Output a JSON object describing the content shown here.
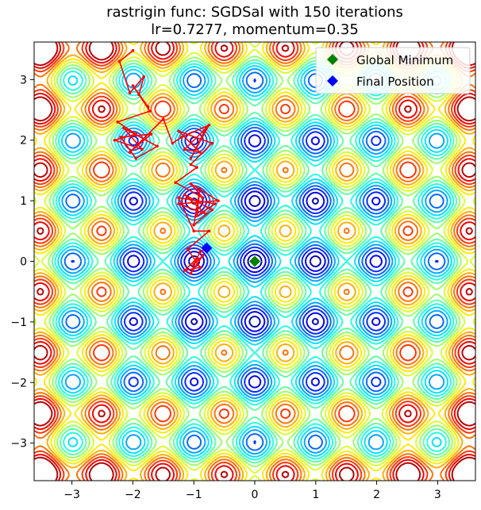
{
  "chart_data": {
    "type": "contour",
    "title": "rastrigin func: SGDSaI with 150 iterations",
    "subtitle": "lr=0.7277, momentum=0.35",
    "xlabel": "",
    "ylabel": "",
    "xlim": [
      -3.62,
      3.62
    ],
    "ylim": [
      -3.62,
      3.62
    ],
    "xticks": [
      -3,
      -2,
      -1,
      0,
      1,
      2,
      3
    ],
    "yticks": [
      -3,
      -2,
      -1,
      0,
      1,
      2,
      3
    ],
    "xtick_labels": [
      "−3",
      "−2",
      "−1",
      "0",
      "1",
      "2",
      "3"
    ],
    "ytick_labels": [
      "−3",
      "−2",
      "−1",
      "0",
      "1",
      "2",
      "3"
    ],
    "colormap": "jet",
    "legend_position": "top-right",
    "legend": [
      {
        "label": "Global Minimum",
        "color": "#008000",
        "marker": "diamond"
      },
      {
        "label": "Final Position",
        "color": "#0000ff",
        "marker": "diamond"
      }
    ],
    "global_minimum": {
      "x": 0.0,
      "y": 0.0
    },
    "final_position": {
      "x": -0.79,
      "y": 0.22
    },
    "path_color": "#ff0000",
    "path": [
      [
        -2.0,
        3.48
      ],
      [
        -2.22,
        3.3
      ],
      [
        -2.05,
        2.78
      ],
      [
        -1.82,
        3.05
      ],
      [
        -1.9,
        2.75
      ],
      [
        -1.75,
        2.55
      ],
      [
        -2.0,
        2.9
      ],
      [
        -1.72,
        2.48
      ],
      [
        -2.25,
        2.3
      ],
      [
        -1.95,
        2.1
      ],
      [
        -2.3,
        2.0
      ],
      [
        -1.85,
        1.85
      ],
      [
        -2.15,
        2.2
      ],
      [
        -1.6,
        1.9
      ],
      [
        -1.95,
        1.7
      ],
      [
        -2.2,
        2.05
      ],
      [
        -1.7,
        2.1
      ],
      [
        -2.05,
        1.8
      ],
      [
        -1.5,
        2.35
      ],
      [
        -1.35,
        1.95
      ],
      [
        -1.2,
        2.05
      ],
      [
        -0.75,
        2.25
      ],
      [
        -1.05,
        1.7
      ],
      [
        -0.8,
        2.2
      ],
      [
        -1.15,
        1.85
      ],
      [
        -0.9,
        1.8
      ],
      [
        -1.25,
        2.15
      ],
      [
        -0.7,
        1.95
      ],
      [
        -1.05,
        1.6
      ],
      [
        -0.95,
        1.55
      ],
      [
        -1.3,
        1.3
      ],
      [
        -0.85,
        1.05
      ],
      [
        -1.05,
        1.28
      ],
      [
        -0.6,
        1.0
      ],
      [
        -1.25,
        0.95
      ],
      [
        -0.8,
        0.78
      ],
      [
        -1.15,
        1.1
      ],
      [
        -0.7,
        0.85
      ],
      [
        -1.0,
        0.6
      ],
      [
        -0.9,
        1.2
      ],
      [
        -0.95,
        0.75
      ],
      [
        -0.65,
        0.95
      ],
      [
        -1.25,
        1.05
      ],
      [
        -1.0,
        0.5
      ],
      [
        -0.75,
        0.5
      ],
      [
        -1.1,
        0.2
      ],
      [
        -0.9,
        -0.1
      ],
      [
        -1.15,
        -0.15
      ],
      [
        -0.95,
        0.05
      ],
      [
        -1.05,
        -0.2
      ],
      [
        -0.85,
        0.1
      ],
      [
        -1.0,
        -0.05
      ],
      [
        -0.9,
        0.15
      ],
      [
        -0.79,
        0.22
      ]
    ]
  }
}
